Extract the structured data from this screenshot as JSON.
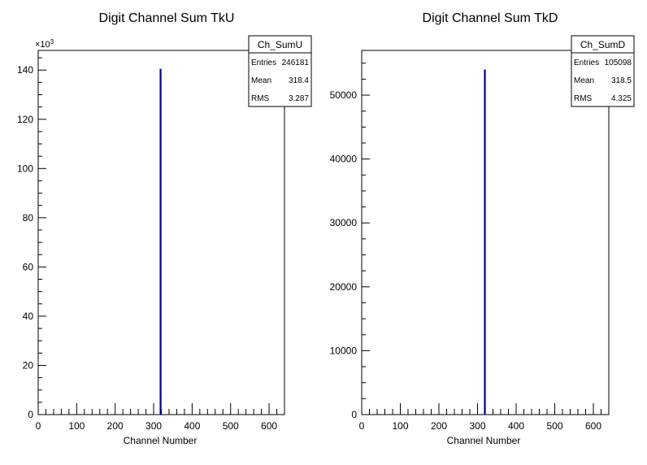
{
  "chart_data": [
    {
      "type": "bar",
      "title": "Digit Channel Sum TkU",
      "xlabel": "Channel Number",
      "ylabel": "",
      "xlim": [
        0,
        640
      ],
      "ylim": [
        0,
        148
      ],
      "y_multiplier": "×10",
      "y_multiplier_exp": "3",
      "x_ticks": [
        0,
        100,
        200,
        300,
        400,
        500,
        600
      ],
      "y_ticks": [
        0,
        20,
        40,
        60,
        80,
        100,
        120,
        140
      ],
      "series": [
        {
          "color": "#000080",
          "bins": [
            {
              "x": 318,
              "value": 140.5
            }
          ]
        }
      ],
      "stats": {
        "name": "Ch_SumU",
        "rows": [
          {
            "label": "Entries",
            "value": "246181"
          },
          {
            "label": "Mean",
            "value": "318.4"
          },
          {
            "label": "RMS",
            "value": "3.287"
          }
        ]
      }
    },
    {
      "type": "bar",
      "title": "Digit Channel Sum TkD",
      "xlabel": "Channel Number",
      "ylabel": "",
      "xlim": [
        0,
        640
      ],
      "ylim": [
        0,
        57000
      ],
      "x_ticks": [
        0,
        100,
        200,
        300,
        400,
        500,
        600
      ],
      "y_ticks": [
        0,
        10000,
        20000,
        30000,
        40000,
        50000
      ],
      "series": [
        {
          "color": "#000080",
          "bins": [
            {
              "x": 319,
              "value": 54000
            }
          ]
        }
      ],
      "stats": {
        "name": "Ch_SumD",
        "rows": [
          {
            "label": "Entries",
            "value": "105098"
          },
          {
            "label": "Mean",
            "value": "318.5"
          },
          {
            "label": "RMS",
            "value": "4.325"
          }
        ]
      }
    }
  ]
}
